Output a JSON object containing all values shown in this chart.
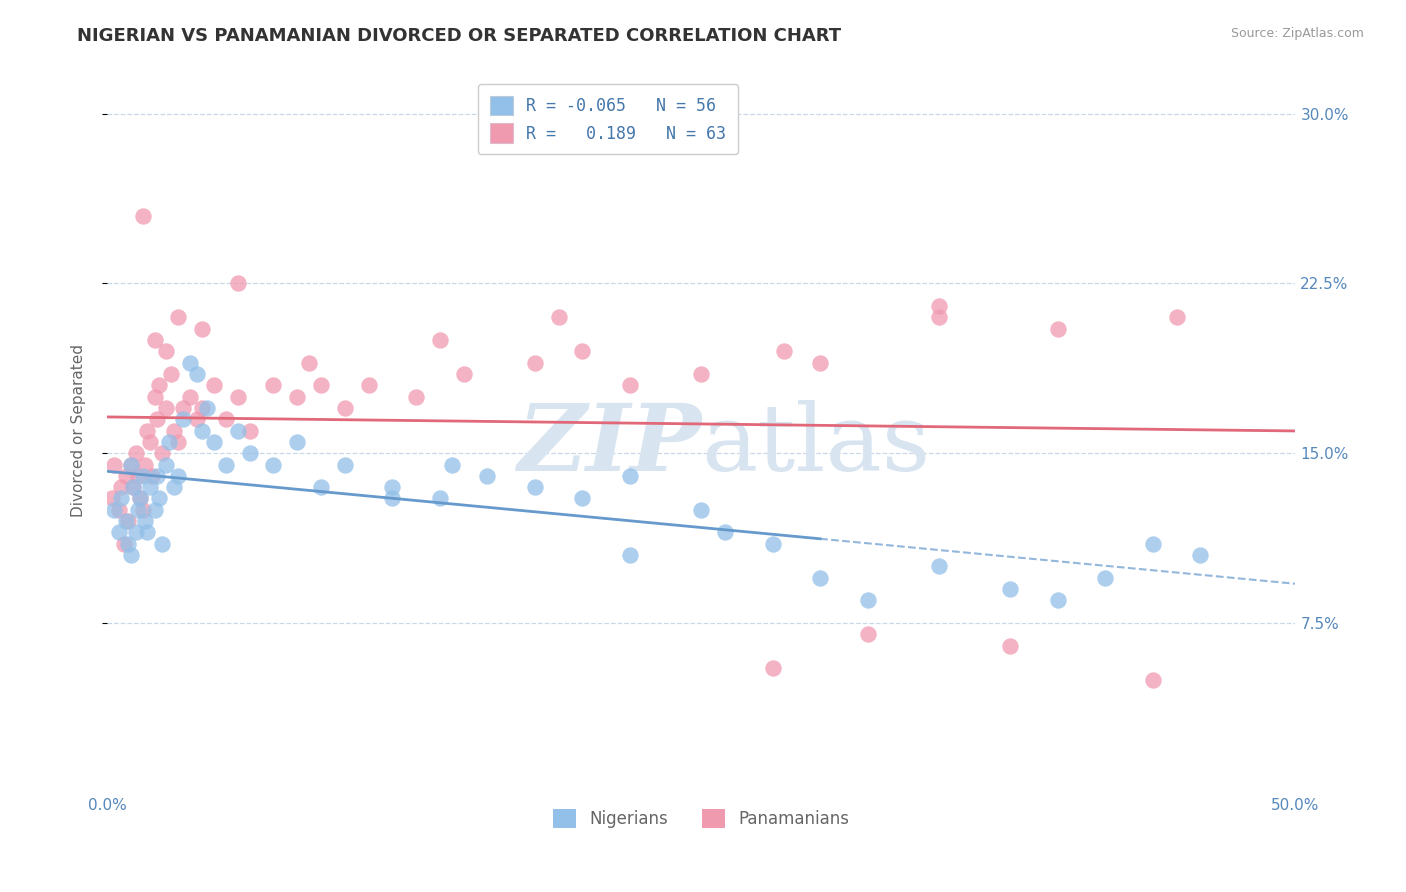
{
  "title": "NIGERIAN VS PANAMANIAN DIVORCED OR SEPARATED CORRELATION CHART",
  "source_text": "Source: ZipAtlas.com",
  "ylabel": "Divorced or Separated",
  "xlim": [
    0.0,
    50.0
  ],
  "ylim": [
    0.0,
    32.0
  ],
  "xtick_vals": [
    0.0,
    50.0
  ],
  "xtick_labels": [
    "0.0%",
    "50.0%"
  ],
  "ytick_vals": [
    7.5,
    15.0,
    22.5,
    30.0
  ],
  "ytick_labels": [
    "7.5%",
    "15.0%",
    "22.5%",
    "30.0%"
  ],
  "nigerian_scatter_color": "#92c0e8",
  "panamanian_scatter_color": "#f09ab0",
  "nigerian_line_color": "#6699cc",
  "panamanian_line_color": "#e06878",
  "background_color": "#ffffff",
  "grid_color": "#c8d8e8",
  "watermark_color": "#d8e4f0",
  "title_fontsize": 13,
  "axis_label_fontsize": 11,
  "tick_fontsize": 11,
  "nigerian_x": [
    0.3,
    0.5,
    0.6,
    0.8,
    0.9,
    1.0,
    1.0,
    1.1,
    1.2,
    1.3,
    1.4,
    1.5,
    1.6,
    1.7,
    1.8,
    2.0,
    2.1,
    2.2,
    2.3,
    2.5,
    2.6,
    2.8,
    3.0,
    3.2,
    3.5,
    3.8,
    4.0,
    4.2,
    4.5,
    5.0,
    5.5,
    6.0,
    7.0,
    8.0,
    9.0,
    10.0,
    12.0,
    14.0,
    16.0,
    18.0,
    20.0,
    22.0,
    25.0,
    28.0,
    30.0,
    32.0,
    35.0,
    38.0,
    40.0,
    42.0,
    44.0,
    46.0,
    12.0,
    14.5,
    22.0,
    26.0
  ],
  "nigerian_y": [
    12.5,
    11.5,
    13.0,
    12.0,
    11.0,
    14.5,
    10.5,
    13.5,
    11.5,
    12.5,
    13.0,
    14.0,
    12.0,
    11.5,
    13.5,
    12.5,
    14.0,
    13.0,
    11.0,
    14.5,
    15.5,
    13.5,
    14.0,
    16.5,
    19.0,
    18.5,
    16.0,
    17.0,
    15.5,
    14.5,
    16.0,
    15.0,
    14.5,
    15.5,
    13.5,
    14.5,
    13.5,
    13.0,
    14.0,
    13.5,
    13.0,
    14.0,
    12.5,
    11.0,
    9.5,
    8.5,
    10.0,
    9.0,
    8.5,
    9.5,
    11.0,
    10.5,
    13.0,
    14.5,
    10.5,
    11.5
  ],
  "panamanian_x": [
    0.2,
    0.3,
    0.5,
    0.6,
    0.7,
    0.8,
    0.9,
    1.0,
    1.1,
    1.2,
    1.3,
    1.4,
    1.5,
    1.6,
    1.7,
    1.8,
    1.9,
    2.0,
    2.1,
    2.2,
    2.3,
    2.5,
    2.7,
    2.8,
    3.0,
    3.2,
    3.5,
    3.8,
    4.0,
    4.5,
    5.0,
    5.5,
    6.0,
    7.0,
    8.0,
    9.0,
    10.0,
    11.0,
    13.0,
    15.0,
    18.0,
    20.0,
    25.0,
    30.0,
    35.0,
    22.0,
    28.5,
    40.0,
    45.0,
    35.0,
    1.5,
    2.0,
    2.5,
    3.0,
    4.0,
    5.5,
    8.5,
    14.0,
    19.0,
    28.0,
    32.0,
    38.0,
    44.0
  ],
  "panamanian_y": [
    13.0,
    14.5,
    12.5,
    13.5,
    11.0,
    14.0,
    12.0,
    14.5,
    13.5,
    15.0,
    14.0,
    13.0,
    12.5,
    14.5,
    16.0,
    15.5,
    14.0,
    17.5,
    16.5,
    18.0,
    15.0,
    17.0,
    18.5,
    16.0,
    15.5,
    17.0,
    17.5,
    16.5,
    17.0,
    18.0,
    16.5,
    17.5,
    16.0,
    18.0,
    17.5,
    18.0,
    17.0,
    18.0,
    17.5,
    18.5,
    19.0,
    19.5,
    18.5,
    19.0,
    21.0,
    18.0,
    19.5,
    20.5,
    21.0,
    21.5,
    25.5,
    20.0,
    19.5,
    21.0,
    20.5,
    22.5,
    19.0,
    20.0,
    21.0,
    5.5,
    7.0,
    6.5,
    5.0
  ]
}
